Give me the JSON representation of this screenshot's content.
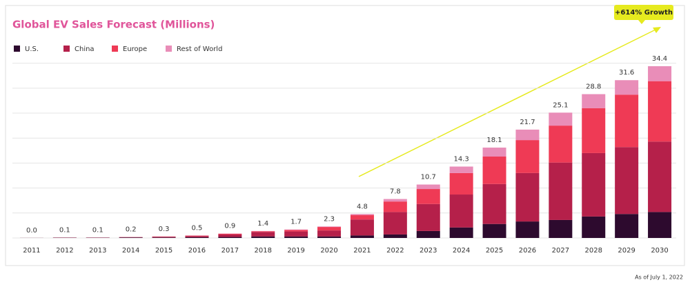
{
  "chart_data": {
    "type": "stacked-bar",
    "title": "Global EV Sales Forecast (Millions)",
    "annotation": "+614% Growth",
    "footnote": "As of July 1, 2022",
    "categories": [
      "2011",
      "2012",
      "2013",
      "2014",
      "2015",
      "2016",
      "2017",
      "2018",
      "2019",
      "2020",
      "2021",
      "2022",
      "2023",
      "2024",
      "2025",
      "2026",
      "2027",
      "2028",
      "2029",
      "2030"
    ],
    "series": [
      {
        "name": "U.S.",
        "color": "#2d0a2e",
        "values": [
          0.01,
          0.05,
          0.05,
          0.1,
          0.1,
          0.15,
          0.2,
          0.3,
          0.3,
          0.3,
          0.5,
          0.7,
          1.4,
          2.1,
          2.8,
          3.3,
          3.6,
          4.3,
          4.8,
          5.2
        ]
      },
      {
        "name": "China",
        "color": "#b5204a",
        "values": [
          0.01,
          0.03,
          0.03,
          0.07,
          0.15,
          0.25,
          0.5,
          0.9,
          1.0,
          1.2,
          3.2,
          4.5,
          5.4,
          6.6,
          8.0,
          9.7,
          11.5,
          12.7,
          13.4,
          14.1
        ]
      },
      {
        "name": "Europe",
        "color": "#ef3a55",
        "values": [
          0,
          0.01,
          0.01,
          0.02,
          0.04,
          0.07,
          0.15,
          0.15,
          0.3,
          0.7,
          0.9,
          2.1,
          3.0,
          4.3,
          5.5,
          6.6,
          7.4,
          9.0,
          10.5,
          12.1
        ]
      },
      {
        "name": "Rest of World",
        "color": "#e98db8",
        "values": [
          0,
          0.01,
          0.01,
          0.01,
          0.01,
          0.03,
          0.05,
          0.05,
          0.1,
          0.1,
          0.2,
          0.5,
          0.9,
          1.3,
          1.8,
          2.1,
          2.6,
          2.8,
          2.9,
          3.0
        ]
      }
    ],
    "totals": [
      0,
      0.1,
      0.1,
      0.2,
      0.3,
      0.5,
      0.9,
      1.4,
      1.7,
      2.3,
      4.8,
      7.8,
      10.7,
      14.3,
      18.1,
      21.7,
      25.1,
      28.8,
      31.6,
      34.4
    ],
    "total_labels": [
      "0.0",
      "0.1",
      "0.1",
      "0.2",
      "0.3",
      "0.5",
      "0.9",
      "1.4",
      "1.7",
      "2.3",
      "4.8",
      "7.8",
      "10.7",
      "14.3",
      "18.1",
      "21.7",
      "25.1",
      "28.8",
      "31.6",
      "34.4"
    ],
    "ylim": [
      0,
      35.5
    ],
    "yticks": [
      0,
      5,
      10,
      15,
      20,
      25,
      30,
      35
    ],
    "grid": true
  }
}
